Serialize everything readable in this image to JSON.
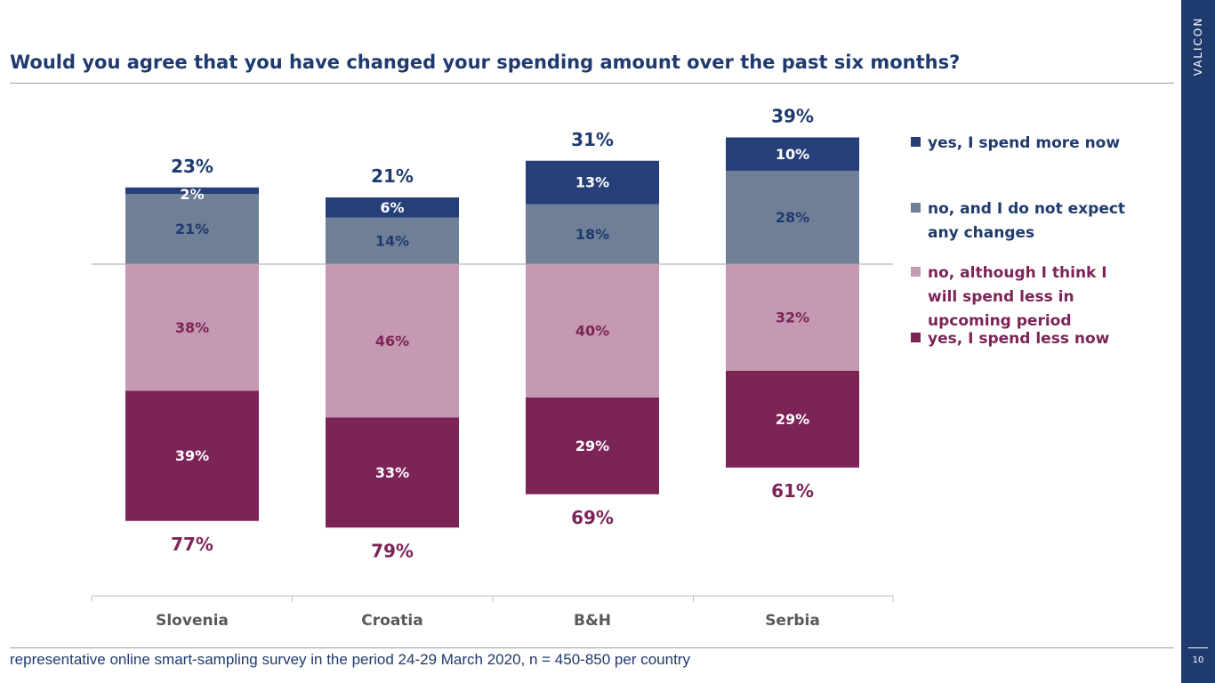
{
  "title": "Would you agree that you have changed your spending amount over the past six months?",
  "brand": "VALICON",
  "page_number": "10",
  "footnote": "representative online smart-sampling survey in the period 24-29 March 2020, n = 450-850 per country",
  "colors": {
    "more_now": "#273f78",
    "no_change": "#6f7f98",
    "less_expected": "#c599b2",
    "less_now": "#7d2457",
    "text_blue": "#1f3a6e",
    "text_purple": "#7d2457"
  },
  "chart_data": {
    "type": "bar",
    "stacked": true,
    "diverging": true,
    "categories": [
      "Slovenia",
      "Croatia",
      "B&H",
      "Serbia"
    ],
    "series": [
      {
        "name": "yes, I spend more now",
        "direction": "up",
        "values": [
          2,
          6,
          13,
          10
        ],
        "labels": [
          "2%",
          "6%",
          "13%",
          "10%"
        ]
      },
      {
        "name": "no, and I do not expect any changes",
        "direction": "up",
        "values": [
          21,
          14,
          18,
          28
        ],
        "labels": [
          "21%",
          "14%",
          "18%",
          "28%"
        ]
      },
      {
        "name": "no, although I think I will spend less in upcoming period",
        "direction": "down",
        "values": [
          38,
          46,
          40,
          32
        ],
        "labels": [
          "38%",
          "46%",
          "40%",
          "32%"
        ]
      },
      {
        "name": "yes, I spend less now",
        "direction": "down",
        "values": [
          39,
          33,
          29,
          29
        ],
        "labels": [
          "39%",
          "33%",
          "29%",
          "29%"
        ]
      }
    ],
    "totals_up": [
      "23%",
      "21%",
      "31%",
      "39%"
    ],
    "totals_down": [
      "77%",
      "79%",
      "69%",
      "61%"
    ],
    "legend_position": "right"
  },
  "legend": [
    {
      "label": "yes, I spend more now",
      "color": "#273f78",
      "text_color": "#1f3a6e"
    },
    {
      "label": "no, and I do not expect any changes",
      "color": "#6f7f98",
      "text_color": "#1f3a6e"
    },
    {
      "label": "no, although I think I will spend less in upcoming period",
      "color": "#c599b2",
      "text_color": "#7d2457"
    },
    {
      "label": "yes, I spend less now",
      "color": "#7d2457",
      "text_color": "#7d2457"
    }
  ]
}
